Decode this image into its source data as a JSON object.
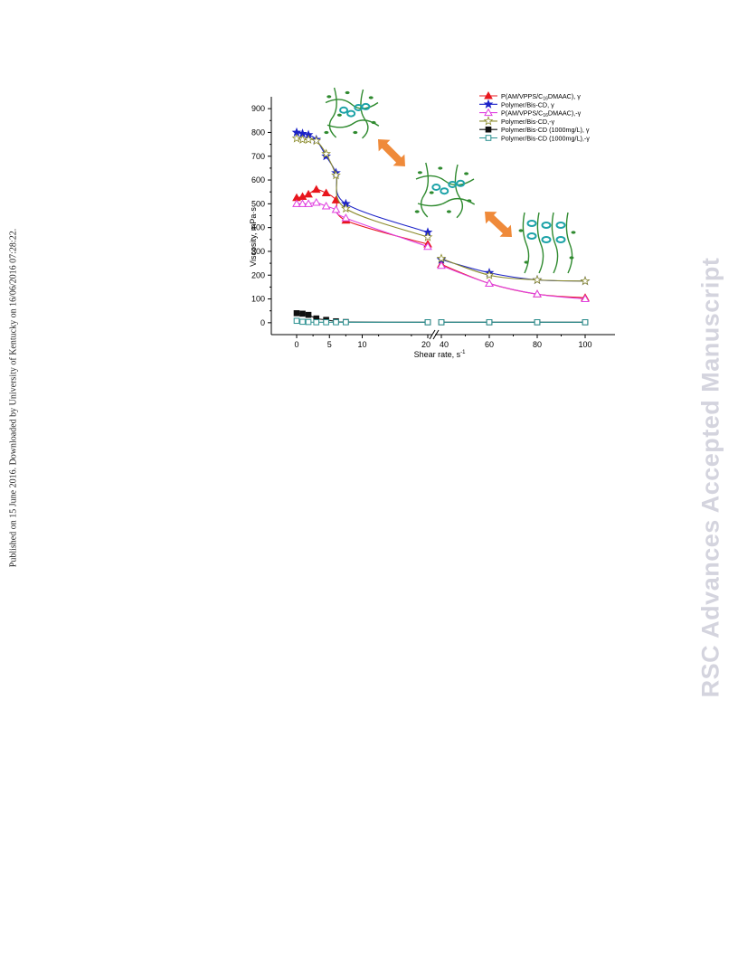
{
  "side_note": "Published on 15 June 2016. Downloaded by University of Kentucky on 16/06/2016 07:28:22.",
  "watermark": "RSC Advances Accepted Manuscript",
  "chart_data": {
    "type": "line",
    "xlabel": "Shear rate, s",
    "xlabel_sup": "-1",
    "ylabel": "Viscosity, mPa·s",
    "ylim": [
      -50,
      950
    ],
    "yticks": [
      "0",
      "100",
      "200",
      "300",
      "400",
      "500",
      "600",
      "700",
      "800",
      "900"
    ],
    "xticks": [
      "0",
      "5",
      "10",
      "20",
      "40",
      "60",
      "80",
      "100"
    ],
    "x_axis_break": "between 20 and 40",
    "legend_position": "top-right",
    "grid": false,
    "series": [
      {
        "name": "P(AM/VPPS/C16DMAAC), γ",
        "label_main": "P(AM/VPPS/C",
        "label_sub": "16",
        "label_tail": "DMAAC), γ",
        "color": "#e8161d",
        "marker": "triangle-filled",
        "x": [
          0,
          0.9,
          1.8,
          3.0,
          4.5,
          6.0,
          7.5,
          20,
          40,
          60,
          80,
          100
        ],
        "y": [
          525,
          530,
          540,
          560,
          545,
          515,
          430,
          330,
          245,
          165,
          120,
          105
        ]
      },
      {
        "name": "Polymer/Bis-CD, γ",
        "label_main": "Polymer/Bis-CD, γ",
        "color": "#1b22c8",
        "marker": "star-filled",
        "x": [
          0,
          0.9,
          1.8,
          3.0,
          4.5,
          6.0,
          7.5,
          20,
          40,
          60,
          80,
          100
        ],
        "y": [
          800,
          795,
          790,
          770,
          700,
          630,
          500,
          380,
          265,
          210,
          180,
          175
        ]
      },
      {
        "name": "P(AM/VPPS/C16DMAAC),-γ",
        "label_main": "P(AM/VPPS/C",
        "label_sub": "16",
        "label_tail": "DMAAC),-γ",
        "color": "#e040e0",
        "marker": "triangle-open",
        "x": [
          0,
          0.9,
          1.8,
          3.0,
          4.5,
          6.0,
          7.5,
          20,
          40,
          60,
          80,
          100
        ],
        "y": [
          500,
          500,
          500,
          505,
          490,
          475,
          440,
          320,
          240,
          165,
          120,
          100
        ]
      },
      {
        "name": "Polymer/Bis-CD,-γ",
        "label_main": "Polymer/Bis-CD,-γ",
        "color": "#8a8a2a",
        "marker": "star-open",
        "x": [
          0,
          0.9,
          1.8,
          3.0,
          4.5,
          6.0,
          7.5,
          20,
          40,
          60,
          80,
          100
        ],
        "y": [
          775,
          770,
          770,
          765,
          710,
          620,
          480,
          360,
          270,
          200,
          180,
          175
        ]
      },
      {
        "name": "Polymer/Bis-CD (1000mg/L), γ",
        "label_main": "Polymer/Bis-CD (1000mg/L), γ",
        "color": "#111111",
        "marker": "square-filled",
        "x": [
          0,
          0.9,
          1.8,
          3.0,
          4.5,
          6.0,
          7.5,
          20,
          40,
          60,
          80,
          100
        ],
        "y": [
          40,
          38,
          33,
          18,
          12,
          6,
          3,
          2,
          2,
          2,
          2,
          2
        ]
      },
      {
        "name": "Polymer/Bis-CD (1000mg/L),-γ",
        "label_main": "Polymer/Bis-CD (1000mg/L),-γ",
        "color": "#2a9090",
        "marker": "square-open",
        "x": [
          0,
          0.9,
          1.8,
          3.0,
          4.5,
          6.0,
          7.5,
          20,
          40,
          60,
          80,
          100
        ],
        "y": [
          8,
          4,
          3,
          2,
          2,
          2,
          2,
          2,
          2,
          2,
          2,
          2
        ]
      }
    ],
    "colors": {
      "arrow": "#ef8a3a",
      "chain": "#2f8a2f",
      "cyclodextrin": "#1ea3a8"
    }
  }
}
